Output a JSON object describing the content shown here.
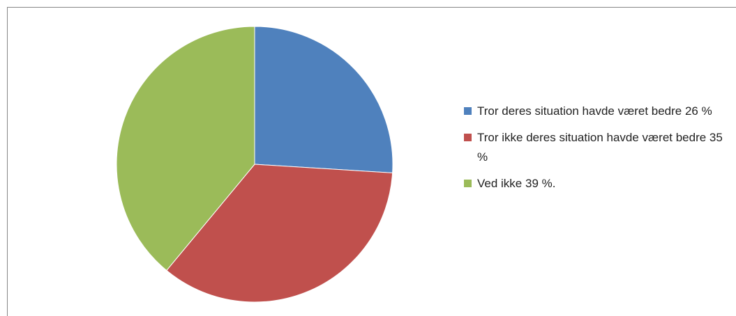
{
  "chart_data": {
    "type": "pie",
    "categories": [
      "Tror deres situation havde været bedre 26 %",
      "Tror ikke deres situation havde været bedre 35 %",
      "Ved ikke 39 %."
    ],
    "values": [
      26,
      35,
      39
    ],
    "colors": [
      "#4f81bd",
      "#c0504d",
      "#9bbb59"
    ],
    "legend": "right"
  }
}
